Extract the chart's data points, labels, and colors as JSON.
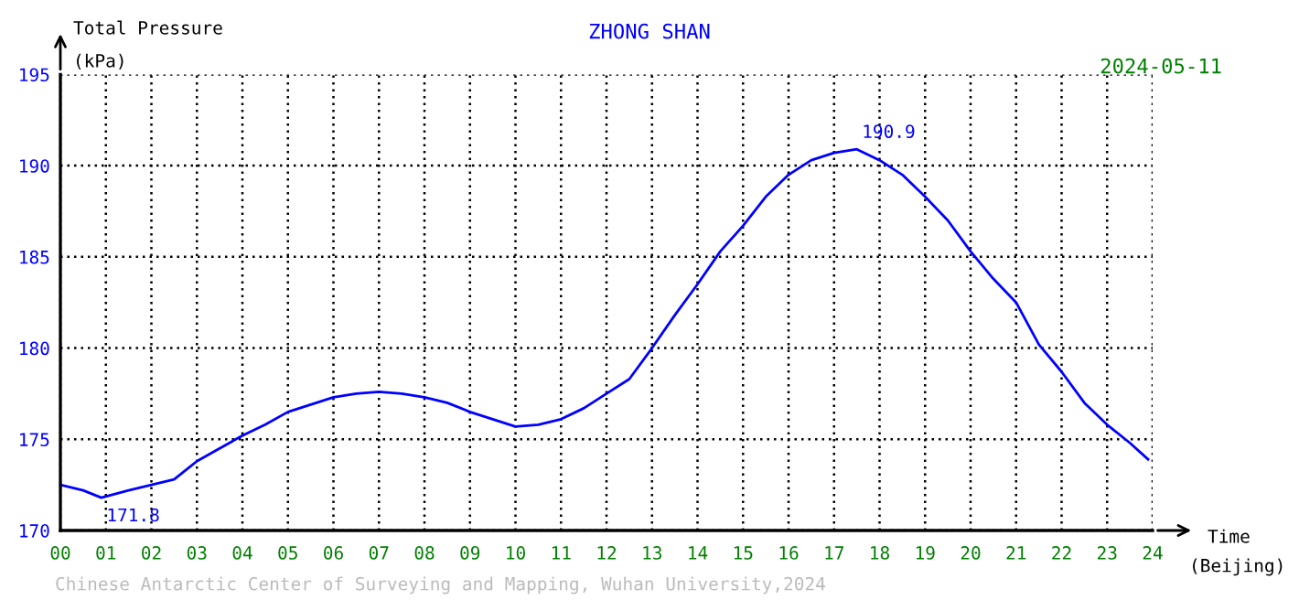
{
  "chart_data": {
    "type": "line",
    "title": "ZHONG SHAN",
    "ylabel": "Total Pressure\n(kPa)",
    "xlabel": "Time\n(Beijing)",
    "annotations": [
      {
        "text": "171.8",
        "x": 0.9,
        "y": 171.8
      },
      {
        "text": "190.9",
        "x": 17.5,
        "y": 190.9
      },
      "2024-05-11",
      "Chinese Antarctic Center of Surveying and Mapping, Wuhan University,2024"
    ],
    "series": [
      {
        "color": "#0000ff",
        "x": [
          0,
          0.5,
          0.9,
          1.5,
          2,
          2.5,
          3,
          3.5,
          4,
          4.5,
          5,
          5.5,
          6,
          6.5,
          7,
          7.5,
          8,
          8.5,
          9,
          9.5,
          10,
          10.5,
          11,
          11.5,
          12,
          12.5,
          13,
          13.5,
          14,
          14.5,
          15,
          15.5,
          16,
          16.5,
          17,
          17.5,
          18,
          18.5,
          19,
          19.5,
          20,
          20.5,
          21,
          21.5,
          22,
          22.5,
          23,
          23.5,
          23.9
        ],
        "values": [
          172.5,
          172.2,
          171.8,
          172.2,
          172.5,
          172.8,
          173.8,
          174.5,
          175.2,
          175.8,
          176.5,
          176.9,
          177.3,
          177.5,
          177.6,
          177.5,
          177.3,
          177.0,
          176.5,
          176.1,
          175.7,
          175.8,
          176.1,
          176.7,
          177.5,
          178.3,
          180.0,
          181.8,
          183.5,
          185.3,
          186.7,
          188.3,
          189.5,
          190.3,
          190.7,
          190.9,
          190.3,
          189.5,
          188.3,
          187.0,
          185.3,
          183.8,
          182.5,
          180.2,
          178.7,
          177.0,
          175.8,
          174.8,
          173.9
        ]
      }
    ],
    "xlim": [
      0,
      24
    ],
    "ylim": [
      170,
      195
    ],
    "xticks": [
      {
        "value": 0,
        "label": "00"
      },
      {
        "value": 1,
        "label": "01"
      },
      {
        "value": 2,
        "label": "02"
      },
      {
        "value": 3,
        "label": "03"
      },
      {
        "value": 4,
        "label": "04"
      },
      {
        "value": 5,
        "label": "05"
      },
      {
        "value": 6,
        "label": "06"
      },
      {
        "value": 7,
        "label": "07"
      },
      {
        "value": 8,
        "label": "08"
      },
      {
        "value": 9,
        "label": "09"
      },
      {
        "value": 10,
        "label": "10"
      },
      {
        "value": 11,
        "label": "11"
      },
      {
        "value": 12,
        "label": "12"
      },
      {
        "value": 13,
        "label": "13"
      },
      {
        "value": 14,
        "label": "14"
      },
      {
        "value": 15,
        "label": "15"
      },
      {
        "value": 16,
        "label": "16"
      },
      {
        "value": 17,
        "label": "17"
      },
      {
        "value": 18,
        "label": "18"
      },
      {
        "value": 19,
        "label": "19"
      },
      {
        "value": 20,
        "label": "20"
      },
      {
        "value": 21,
        "label": "21"
      },
      {
        "value": 22,
        "label": "22"
      },
      {
        "value": 23,
        "label": "23"
      },
      {
        "value": 24,
        "label": "24"
      }
    ],
    "yticks": [
      170,
      175,
      180,
      185,
      190,
      195
    ],
    "grid": true,
    "marker": "none",
    "line_style": "solid"
  }
}
